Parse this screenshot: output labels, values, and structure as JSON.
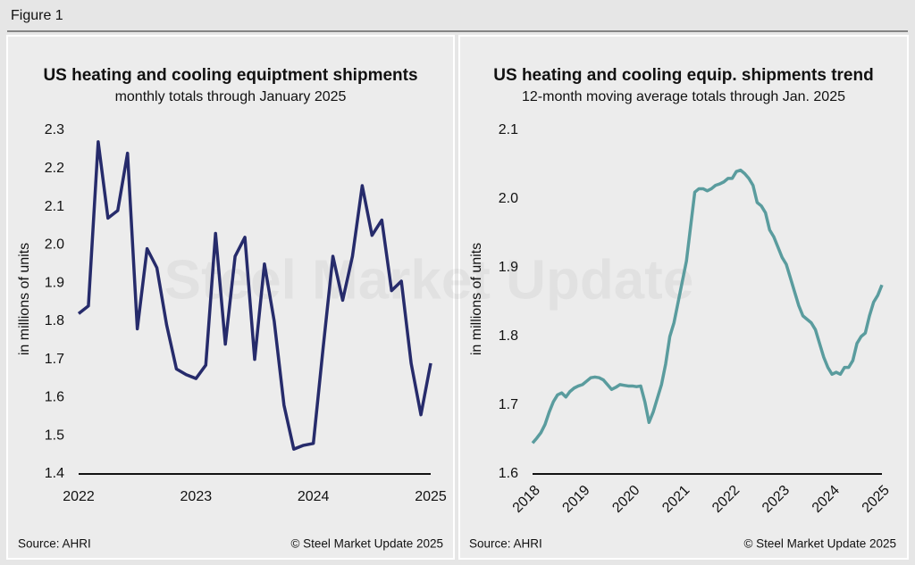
{
  "figure_label": "Figure 1",
  "watermark": "Steel Market Update",
  "chart_data": [
    {
      "type": "line",
      "title": "US heating and cooling equiptment shipments",
      "subtitle": "monthly totals through January 2025",
      "y_label": "in millions of units",
      "source": "Source: AHRI",
      "credit": "© Steel Market Update 2025",
      "categories": [
        "2022",
        null,
        null,
        null,
        null,
        null,
        null,
        null,
        null,
        null,
        null,
        null,
        "2023",
        null,
        null,
        null,
        null,
        null,
        null,
        null,
        null,
        null,
        null,
        null,
        "2024",
        null,
        null,
        null,
        null,
        null,
        null,
        null,
        null,
        null,
        null,
        null,
        "2025"
      ],
      "series": [
        {
          "name": "Shipments",
          "color": "#262b6b",
          "values": [
            1.82,
            1.84,
            2.27,
            2.07,
            2.09,
            2.24,
            1.78,
            1.99,
            1.94,
            1.79,
            1.675,
            1.66,
            1.65,
            1.685,
            2.03,
            1.74,
            1.97,
            2.02,
            1.7,
            1.95,
            1.8,
            1.58,
            1.465,
            1.475,
            1.48,
            1.73,
            1.97,
            1.855,
            1.97,
            2.155,
            2.025,
            2.065,
            1.88,
            1.905,
            1.69,
            1.555,
            1.69
          ]
        }
      ],
      "ylim": [
        1.4,
        2.3
      ],
      "yticks": [
        1.4,
        1.5,
        1.6,
        1.7,
        1.8,
        1.9,
        {
          "value": 2,
          "label": "2.0"
        },
        2.1,
        2.2,
        2.3
      ],
      "grid": false,
      "x_label_rotation": 0
    },
    {
      "type": "line",
      "title": "US heating and cooling equip. shipments trend",
      "subtitle": "12-month moving average totals through Jan. 2025",
      "y_label": "in millions of units",
      "source": "Source: AHRI",
      "credit": "© Steel Market Update 2025",
      "categories": [
        "2018",
        null,
        null,
        null,
        null,
        null,
        null,
        null,
        null,
        null,
        null,
        null,
        "2019",
        null,
        null,
        null,
        null,
        null,
        null,
        null,
        null,
        null,
        null,
        null,
        "2020",
        null,
        null,
        null,
        null,
        null,
        null,
        null,
        null,
        null,
        null,
        null,
        "2021",
        null,
        null,
        null,
        null,
        null,
        null,
        null,
        null,
        null,
        null,
        null,
        "2022",
        null,
        null,
        null,
        null,
        null,
        null,
        null,
        null,
        null,
        null,
        null,
        "2023",
        null,
        null,
        null,
        null,
        null,
        null,
        null,
        null,
        null,
        null,
        null,
        "2024",
        null,
        null,
        null,
        null,
        null,
        null,
        null,
        null,
        null,
        null,
        null,
        "2025"
      ],
      "series": [
        {
          "name": "12-month moving average",
          "color": "#5a9c9e",
          "values": [
            1.645,
            1.652,
            1.66,
            1.672,
            1.69,
            1.705,
            1.715,
            1.718,
            1.712,
            1.72,
            1.725,
            1.728,
            1.73,
            1.735,
            1.74,
            1.741,
            1.74,
            1.737,
            1.73,
            1.723,
            1.726,
            1.73,
            1.729,
            1.728,
            1.728,
            1.727,
            1.728,
            1.705,
            1.675,
            1.69,
            1.71,
            1.73,
            1.76,
            1.8,
            1.82,
            1.85,
            1.88,
            1.91,
            1.96,
            2.01,
            2.015,
            2.015,
            2.012,
            2.015,
            2.02,
            2.022,
            2.025,
            2.03,
            2.03,
            2.04,
            2.042,
            2.037,
            2.03,
            2.02,
            1.995,
            1.99,
            1.98,
            1.955,
            1.945,
            1.93,
            1.915,
            1.905,
            1.885,
            1.865,
            1.845,
            1.83,
            1.825,
            1.82,
            1.81,
            1.79,
            1.77,
            1.755,
            1.745,
            1.748,
            1.745,
            1.755,
            1.755,
            1.765,
            1.79,
            1.8,
            1.805,
            1.83,
            1.85,
            1.86,
            1.875
          ]
        }
      ],
      "ylim": [
        1.6,
        2.1
      ],
      "yticks": [
        1.6,
        1.7,
        1.8,
        1.9,
        {
          "value": 2,
          "label": "2.0"
        },
        2.1
      ],
      "grid": false,
      "x_label_rotation": -45
    }
  ]
}
